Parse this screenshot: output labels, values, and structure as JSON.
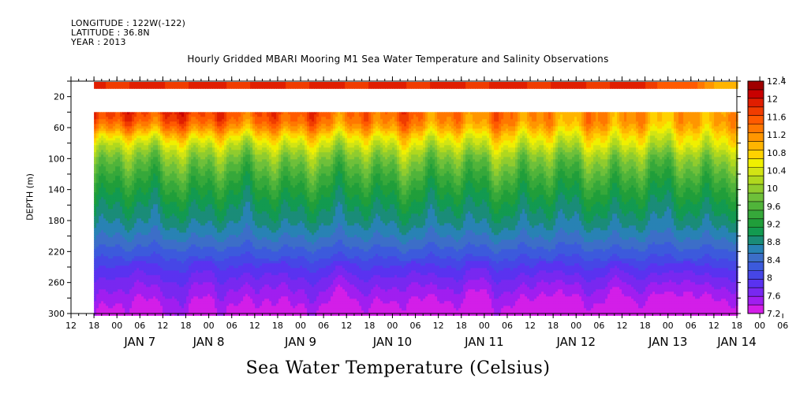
{
  "header": {
    "longitude": "LONGITUDE : 122W(-122)",
    "latitude": "LATITUDE : 36.8N",
    "year": "YEAR : 2013"
  },
  "title": "Hourly Gridded MBARI Mooring M1 Sea Water Temperature and Salinity Observations",
  "bottom_title": "Sea Water Temperature (Celsius)",
  "chart_data": {
    "type": "heatmap",
    "title": "Hourly Gridded MBARI Mooring M1 Sea Water Temperature and Salinity Observations",
    "ylabel": "DEPTH (m)",
    "variable": "Sea Water Temperature (Celsius)",
    "y_range": [
      300,
      0
    ],
    "y_ticks": [
      20,
      60,
      100,
      140,
      180,
      220,
      260,
      300
    ],
    "x_range_hours": [
      0,
      174
    ],
    "x_hour_ticks": [
      "12",
      "18",
      "00",
      "06",
      "12",
      "18",
      "00",
      "06",
      "12",
      "18",
      "00",
      "06",
      "12",
      "18",
      "00",
      "06",
      "12",
      "18",
      "00",
      "06",
      "12",
      "18",
      "00",
      "06",
      "12",
      "18",
      "00",
      "06",
      "12",
      "18",
      "00",
      "06"
    ],
    "x_day_labels": [
      {
        "label": "JAN  7",
        "hour": 18
      },
      {
        "label": "JAN  8",
        "hour": 36
      },
      {
        "label": "JAN  9",
        "hour": 60
      },
      {
        "label": "JAN 10",
        "hour": 84
      },
      {
        "label": "JAN 11",
        "hour": 108
      },
      {
        "label": "JAN 12",
        "hour": 132
      },
      {
        "label": "JAN 13",
        "hour": 156
      },
      {
        "label": "JAN 14",
        "hour": 174
      }
    ],
    "data_start_hour": 6,
    "surface_band_depth": [
      1,
      10
    ],
    "gap_depth": [
      10,
      40
    ],
    "colorbar": {
      "levels": [
        7.2,
        7.4,
        7.6,
        7.8,
        8.0,
        8.2,
        8.4,
        8.6,
        8.8,
        9.0,
        9.2,
        9.4,
        9.6,
        9.8,
        10.0,
        10.2,
        10.4,
        10.6,
        10.8,
        11.0,
        11.2,
        11.4,
        11.6,
        11.8,
        12.0,
        12.2,
        12.4
      ],
      "labels": [
        "12.4",
        "12",
        "11.6",
        "11.2",
        "10.8",
        "10.4",
        "10",
        "9.6",
        "9.2",
        "8.8",
        "8.4",
        "8",
        "7.6",
        "7.2"
      ],
      "colors": [
        "#d31ee8",
        "#a01ef0",
        "#7828f0",
        "#5a32f0",
        "#4646e6",
        "#3c5adc",
        "#3c6ec8",
        "#2882b4",
        "#1a8c78",
        "#129a50",
        "#209e3a",
        "#36a83a",
        "#50b43a",
        "#6ec03a",
        "#90cc2e",
        "#b0d81e",
        "#d2e414",
        "#f0f000",
        "#ffd200",
        "#ffb400",
        "#ff9600",
        "#ff7800",
        "#ff5a00",
        "#f03c00",
        "#e01e00",
        "#c80000",
        "#a00000"
      ]
    },
    "temperature_profile": [
      {
        "depth": 40,
        "temp": 12.0
      },
      {
        "depth": 50,
        "temp": 11.8
      },
      {
        "depth": 60,
        "temp": 11.4
      },
      {
        "depth": 70,
        "temp": 10.9
      },
      {
        "depth": 80,
        "temp": 10.5
      },
      {
        "depth": 90,
        "temp": 10.2
      },
      {
        "depth": 100,
        "temp": 9.95
      },
      {
        "depth": 120,
        "temp": 9.6
      },
      {
        "depth": 140,
        "temp": 9.3
      },
      {
        "depth": 160,
        "temp": 9.05
      },
      {
        "depth": 180,
        "temp": 8.85
      },
      {
        "depth": 200,
        "temp": 8.6
      },
      {
        "depth": 220,
        "temp": 8.3
      },
      {
        "depth": 240,
        "temp": 8.0
      },
      {
        "depth": 260,
        "temp": 7.75
      },
      {
        "depth": 280,
        "temp": 7.55
      },
      {
        "depth": 300,
        "temp": 7.35
      }
    ]
  }
}
